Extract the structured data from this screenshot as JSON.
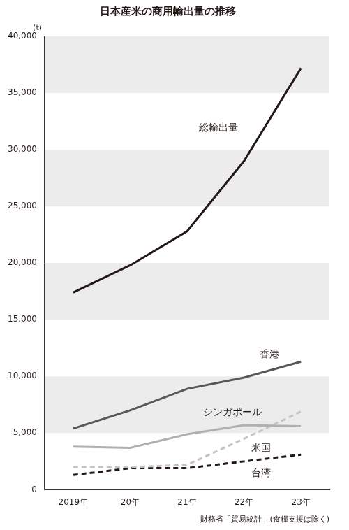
{
  "chart_data": {
    "type": "line",
    "title": "日本産米の商用輸出量の推移",
    "ylabel": "(t)",
    "source": "財務省「貿易統計」(食糧支援は除く)",
    "categories": [
      "2019年",
      "20年",
      "21年",
      "22年",
      "23年"
    ],
    "series": [
      {
        "name": "総輸出量",
        "color": "#231815",
        "line_style": "solid",
        "marker": "none",
        "values": [
          17400,
          19800,
          22800,
          29000,
          37200
        ]
      },
      {
        "name": "香港",
        "color": "#595757",
        "line_style": "solid",
        "marker": "none",
        "values": [
          5400,
          7000,
          8900,
          9900,
          11300
        ]
      },
      {
        "name": "シンガポール",
        "color": "#b0b0b0",
        "line_style": "solid",
        "marker": "none",
        "values": [
          3800,
          3700,
          4900,
          5700,
          5600
        ]
      },
      {
        "name": "米国",
        "color": "#c4c4c4",
        "line_style": "dashed",
        "marker": "none",
        "values": [
          2000,
          2000,
          2200,
          4500,
          6900
        ]
      },
      {
        "name": "台湾",
        "color": "#231815",
        "line_style": "dashed",
        "marker": "none",
        "values": [
          1300,
          1900,
          1900,
          2500,
          3100
        ]
      }
    ],
    "ylim": [
      0,
      40000
    ],
    "yticks": [
      0,
      {
        "value": 5000,
        "label": "5,000"
      },
      {
        "value": 10000,
        "label": "10,000"
      },
      {
        "value": 15000,
        "label": "15,000"
      },
      {
        "value": 20000,
        "label": "20,000"
      },
      {
        "value": 25000,
        "label": "25,000"
      },
      {
        "value": 30000,
        "label": "30,000"
      },
      {
        "value": 35000,
        "label": "35,000"
      },
      {
        "value": 40000,
        "label": "40,000"
      }
    ],
    "grid": true
  }
}
